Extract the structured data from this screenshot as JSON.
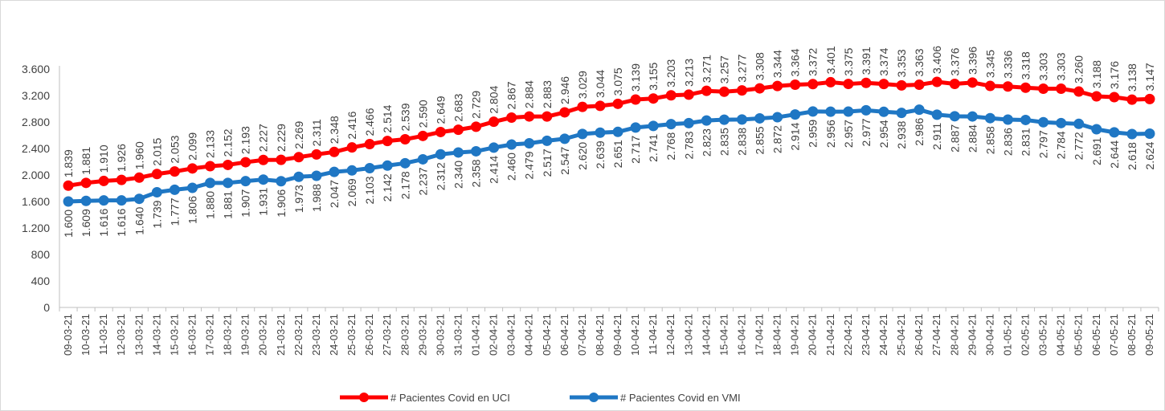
{
  "chart_data": {
    "type": "line",
    "title": "",
    "xlabel": "",
    "ylabel": "",
    "ylim": [
      0,
      3600
    ],
    "yticks": [
      0,
      400,
      800,
      1200,
      1600,
      2000,
      2400,
      2800,
      3200,
      3600
    ],
    "ytick_labels": [
      "0",
      "400",
      "800",
      "1.200",
      "1.600",
      "2.000",
      "2.400",
      "2.800",
      "3.200",
      "3.600"
    ],
    "grid": false,
    "legend_position": "bottom",
    "categories": [
      "09-03-21",
      "10-03-21",
      "11-03-21",
      "12-03-21",
      "13-03-21",
      "14-03-21",
      "15-03-21",
      "16-03-21",
      "17-03-21",
      "18-03-21",
      "19-03-21",
      "20-03-21",
      "21-03-21",
      "22-03-21",
      "23-03-21",
      "24-03-21",
      "25-03-21",
      "26-03-21",
      "27-03-21",
      "28-03-21",
      "29-03-21",
      "30-03-21",
      "31-03-21",
      "01-04-21",
      "02-04-21",
      "03-04-21",
      "04-04-21",
      "05-04-21",
      "06-04-21",
      "07-04-21",
      "08-04-21",
      "09-04-21",
      "10-04-21",
      "11-04-21",
      "12-04-21",
      "13-04-21",
      "14-04-21",
      "15-04-21",
      "16-04-21",
      "17-04-21",
      "18-04-21",
      "19-04-21",
      "20-04-21",
      "21-04-21",
      "22-04-21",
      "23-04-21",
      "24-04-21",
      "25-04-21",
      "26-04-21",
      "27-04-21",
      "28-04-21",
      "29-04-21",
      "30-04-21",
      "01-05-21",
      "02-05-21",
      "03-05-21",
      "04-05-21",
      "05-05-21",
      "06-05-21",
      "07-05-21",
      "08-05-21",
      "09-05-21"
    ],
    "series": [
      {
        "name": "# Pacientes Covid en UCI",
        "color": "#ff0000",
        "values": [
          1839,
          1881,
          1910,
          1926,
          1960,
          2015,
          2053,
          2099,
          2133,
          2152,
          2193,
          2227,
          2229,
          2269,
          2311,
          2348,
          2416,
          2466,
          2514,
          2539,
          2590,
          2649,
          2683,
          2729,
          2804,
          2867,
          2884,
          2883,
          2946,
          3029,
          3044,
          3075,
          3139,
          3155,
          3203,
          3213,
          3271,
          3257,
          3277,
          3308,
          3344,
          3364,
          3372,
          3401,
          3375,
          3391,
          3374,
          3353,
          3363,
          3406,
          3376,
          3396,
          3345,
          3336,
          3318,
          3303,
          3303,
          3260,
          3188,
          3176,
          3138,
          3147
        ],
        "labels": [
          "1.839",
          "1.881",
          "1.910",
          "1.926",
          "1.960",
          "2.015",
          "2.053",
          "2.099",
          "2.133",
          "2.152",
          "2.193",
          "2.227",
          "2.229",
          "2.269",
          "2.311",
          "2.348",
          "2.416",
          "2.466",
          "2.514",
          "2.539",
          "2.590",
          "2.649",
          "2.683",
          "2.729",
          "2.804",
          "2.867",
          "2.884",
          "2.883",
          "2.946",
          "3.029",
          "3.044",
          "3.075",
          "3.139",
          "3.155",
          "3.203",
          "3.213",
          "3.271",
          "3.257",
          "3.277",
          "3.308",
          "3.344",
          "3.364",
          "3.372",
          "3.401",
          "3.375",
          "3.391",
          "3.374",
          "3.353",
          "3.363",
          "3.406",
          "3.376",
          "3.396",
          "3.345",
          "3.336",
          "3.318",
          "3.303",
          "3.303",
          "3.260",
          "3.188",
          "3.176",
          "3.138",
          "3.147"
        ]
      },
      {
        "name": "# Pacientes Covid en VMI",
        "color": "#1f77c4",
        "values": [
          1600,
          1609,
          1616,
          1616,
          1640,
          1739,
          1777,
          1806,
          1880,
          1881,
          1907,
          1931,
          1906,
          1973,
          1988,
          2047,
          2069,
          2103,
          2142,
          2178,
          2237,
          2312,
          2340,
          2358,
          2414,
          2460,
          2479,
          2517,
          2547,
          2620,
          2639,
          2651,
          2717,
          2741,
          2768,
          2783,
          2823,
          2835,
          2838,
          2855,
          2872,
          2914,
          2959,
          2956,
          2957,
          2977,
          2954,
          2938,
          2986,
          2911,
          2887,
          2884,
          2858,
          2836,
          2831,
          2797,
          2784,
          2772,
          2691,
          2644,
          2618,
          2624
        ],
        "labels": [
          "1.600",
          "1.609",
          "1.616",
          "1.616",
          "1.640",
          "1.739",
          "1.777",
          "1.806",
          "1.880",
          "1.881",
          "1.907",
          "1.931",
          "1.906",
          "1.973",
          "1.988",
          "2.047",
          "2.069",
          "2.103",
          "2.142",
          "2.178",
          "2.237",
          "2.312",
          "2.340",
          "2.358",
          "2.414",
          "2.460",
          "2.479",
          "2.517",
          "2.547",
          "2.620",
          "2.639",
          "2.651",
          "2.717",
          "2.741",
          "2.768",
          "2.783",
          "2.823",
          "2.835",
          "2.838",
          "2.855",
          "2.872",
          "2.914",
          "2.959",
          "2.956",
          "2.957",
          "2.977",
          "2.954",
          "2.938",
          "2.986",
          "2.911",
          "2.887",
          "2.884",
          "2.858",
          "2.836",
          "2.831",
          "2.797",
          "2.784",
          "2.772",
          "2.691",
          "2.644",
          "2.618",
          "2.624"
        ]
      }
    ]
  }
}
